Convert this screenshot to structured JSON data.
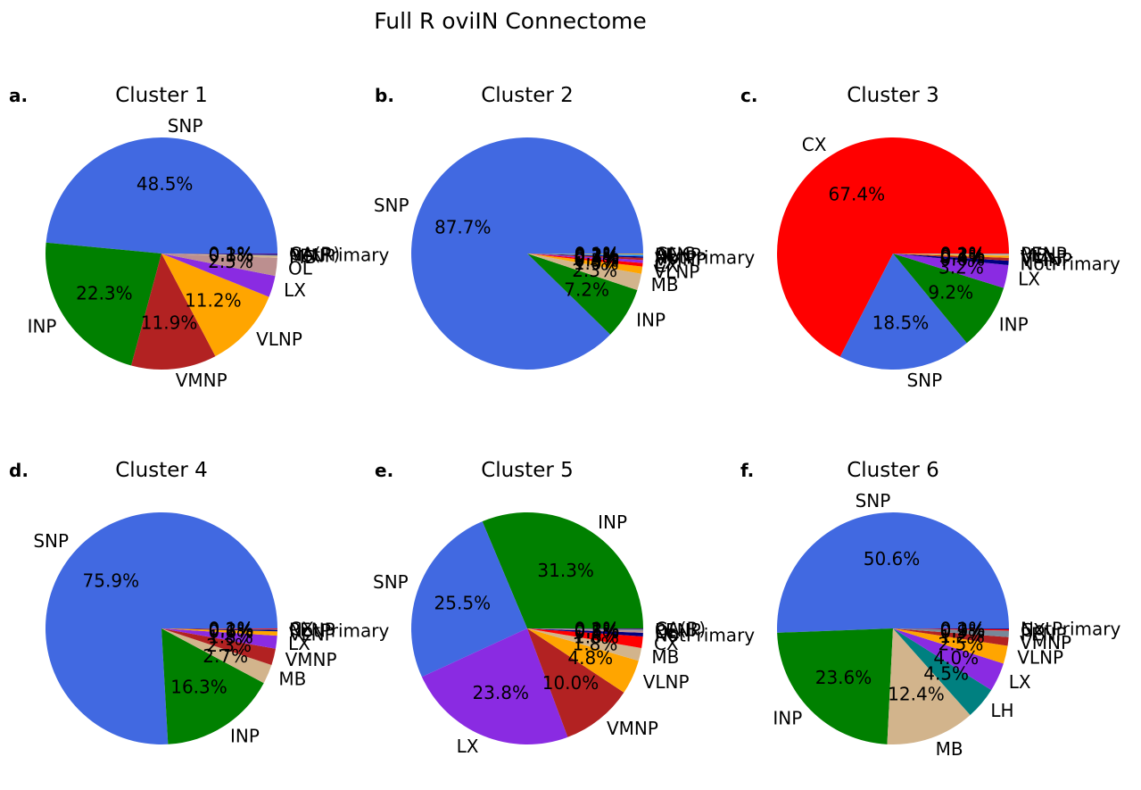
{
  "figure_title": "Full R oviIN Connectome",
  "colors": {
    "SNP": "#4169e1",
    "INP": "#008000",
    "VMNP": "#b22222",
    "VLNP": "#ffa500",
    "LX": "#8a2be2",
    "OL": "#bc8f8f",
    "MB": "#d2b48c",
    "CX": "#ff0000",
    "LH": "#008080",
    "PENP": "#778899",
    "AL": "#1e90ff",
    "GNG": "#daa520",
    "NotPrimary": "#000080",
    "CA(R)": "#4b0082"
  },
  "chart_data": [
    {
      "type": "pie",
      "letter": "a.",
      "title": "Cluster 1",
      "slices": [
        {
          "label": "SNP",
          "value": 48.5,
          "pct": "48.5%"
        },
        {
          "label": "INP",
          "value": 22.3,
          "pct": "22.3%"
        },
        {
          "label": "VMNP",
          "value": 11.9,
          "pct": "11.9%"
        },
        {
          "label": "VLNP",
          "value": 11.2,
          "pct": "11.2%"
        },
        {
          "label": "LX",
          "value": 3.0,
          "pct": ""
        },
        {
          "label": "OL",
          "value": 2.5,
          "pct": "2.5%"
        },
        {
          "label": "MB",
          "value": 0.3,
          "pct": "0.3%"
        },
        {
          "label": "PENP",
          "value": 0.1,
          "pct": "0.1%"
        },
        {
          "label": "NotPrimary",
          "value": 0.1,
          "pct": "0.1%"
        },
        {
          "label": "CA(R)",
          "value": 0.1,
          "pct": "0.1%"
        }
      ]
    },
    {
      "type": "pie",
      "letter": "b.",
      "title": "Cluster 2",
      "slices": [
        {
          "label": "SNP",
          "value": 87.7,
          "pct": "87.7%"
        },
        {
          "label": "INP",
          "value": 7.2,
          "pct": "7.2%"
        },
        {
          "label": "MB",
          "value": 2.3,
          "pct": "2.3%"
        },
        {
          "label": "VLNP",
          "value": 1.0,
          "pct": "1.0%"
        },
        {
          "label": "CX",
          "value": 0.5,
          "pct": "0.5%"
        },
        {
          "label": "LX",
          "value": 0.4,
          "pct": "0.4%"
        },
        {
          "label": "VMNP",
          "value": 0.3,
          "pct": "0.3%"
        },
        {
          "label": "NotPrimary",
          "value": 0.2,
          "pct": "0.2%"
        },
        {
          "label": "AL",
          "value": 0.2,
          "pct": "0.2%"
        },
        {
          "label": "PENP",
          "value": 0.1,
          "pct": "0.1%"
        },
        {
          "label": "GNG",
          "value": 0.1,
          "pct": "0.1%"
        }
      ]
    },
    {
      "type": "pie",
      "letter": "c.",
      "title": "Cluster 3",
      "slices": [
        {
          "label": "CX",
          "value": 67.4,
          "pct": "67.4%"
        },
        {
          "label": "SNP",
          "value": 18.5,
          "pct": "18.5%"
        },
        {
          "label": "INP",
          "value": 9.2,
          "pct": "9.2%"
        },
        {
          "label": "LX",
          "value": 3.2,
          "pct": "3.2%"
        },
        {
          "label": "NotPrimary",
          "value": 0.6,
          "pct": "0.6%"
        },
        {
          "label": "VMNP",
          "value": 0.4,
          "pct": "0.4%"
        },
        {
          "label": "VLNP",
          "value": 0.3,
          "pct": "0.3%"
        },
        {
          "label": "MB",
          "value": 0.2,
          "pct": "0.2%"
        },
        {
          "label": "PENP",
          "value": 0.1,
          "pct": "0.1%"
        }
      ]
    },
    {
      "type": "pie",
      "letter": "d.",
      "title": "Cluster 4",
      "slices": [
        {
          "label": "SNP",
          "value": 75.9,
          "pct": "75.9%"
        },
        {
          "label": "INP",
          "value": 16.3,
          "pct": "16.3%"
        },
        {
          "label": "MB",
          "value": 2.7,
          "pct": "2.7%"
        },
        {
          "label": "VMNP",
          "value": 2.3,
          "pct": "2.3%"
        },
        {
          "label": "LX",
          "value": 1.8,
          "pct": "1.8%"
        },
        {
          "label": "VLNP",
          "value": 0.6,
          "pct": "0.6%"
        },
        {
          "label": "NotPrimary",
          "value": 0.2,
          "pct": "0.2%"
        },
        {
          "label": "PENP",
          "value": 0.1,
          "pct": "0.1%"
        },
        {
          "label": "CX",
          "value": 0.1,
          "pct": "0.1%"
        }
      ]
    },
    {
      "type": "pie",
      "letter": "e.",
      "title": "Cluster 5",
      "slices": [
        {
          "label": "INP",
          "value": 31.3,
          "pct": "31.3%"
        },
        {
          "label": "SNP",
          "value": 25.5,
          "pct": "25.5%"
        },
        {
          "label": "LX",
          "value": 23.8,
          "pct": "23.8%"
        },
        {
          "label": "VMNP",
          "value": 10.0,
          "pct": "10.0%"
        },
        {
          "label": "VLNP",
          "value": 4.8,
          "pct": "4.8%"
        },
        {
          "label": "MB",
          "value": 1.8,
          "pct": "1.8%"
        },
        {
          "label": "CX",
          "value": 1.6,
          "pct": "1.6%"
        },
        {
          "label": "NotPrimary",
          "value": 0.5,
          "pct": "0.5%"
        },
        {
          "label": "OL",
          "value": 0.3,
          "pct": "0.3%"
        },
        {
          "label": "PENP",
          "value": 0.2,
          "pct": "0.2%"
        },
        {
          "label": "CA(R)",
          "value": 0.1,
          "pct": "0.1%"
        }
      ]
    },
    {
      "type": "pie",
      "letter": "f.",
      "title": "Cluster 6",
      "slices": [
        {
          "label": "SNP",
          "value": 50.6,
          "pct": "50.6%"
        },
        {
          "label": "INP",
          "value": 23.6,
          "pct": "23.6%"
        },
        {
          "label": "MB",
          "value": 12.4,
          "pct": "12.4%"
        },
        {
          "label": "LH",
          "value": 4.5,
          "pct": "4.5%"
        },
        {
          "label": "LX",
          "value": 4.0,
          "pct": "4.0%"
        },
        {
          "label": "VLNP",
          "value": 2.5,
          "pct": "2.5%"
        },
        {
          "label": "VMNP",
          "value": 1.2,
          "pct": "1.2%"
        },
        {
          "label": "PENP",
          "value": 0.9,
          "pct": "0.9%"
        },
        {
          "label": "CX",
          "value": 0.2,
          "pct": "0.2%"
        },
        {
          "label": "NotPrimary",
          "value": 0.1,
          "pct": "0.1%"
        }
      ]
    }
  ]
}
